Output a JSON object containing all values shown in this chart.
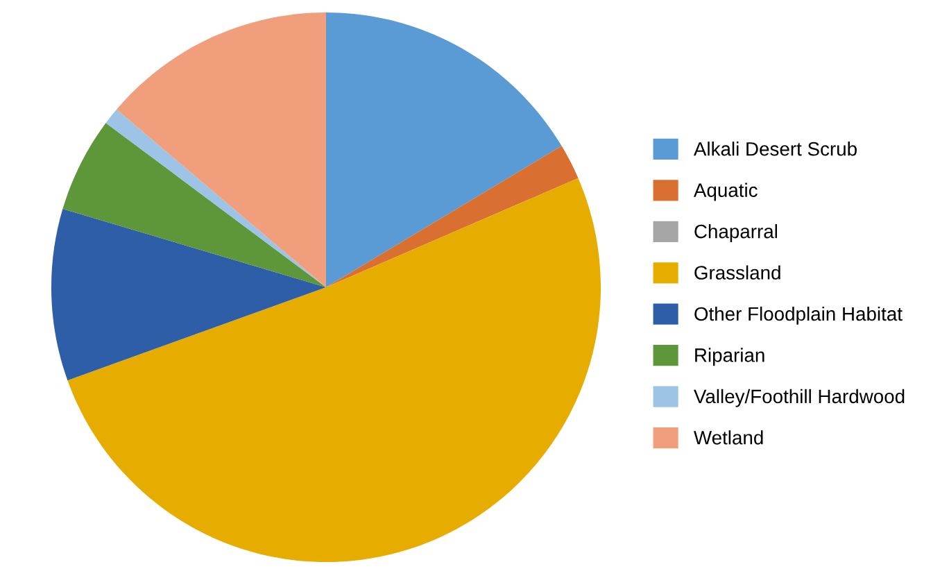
{
  "chart_data": {
    "type": "pie",
    "categories": [
      "Alkali Desert Scrub",
      "Aquatic",
      "Chaparral",
      "Grassland",
      "Other Floodplain Habitat",
      "Riparian",
      "Valley/Foothill Hardwood",
      "Wetland"
    ],
    "values": [
      16.4,
      2.1,
      0,
      51.0,
      10.1,
      5.6,
      1.0,
      13.8
    ],
    "colors": [
      "#5b9bd5",
      "#d97032",
      "#a5a5a5",
      "#e6ad00",
      "#2e5ea8",
      "#5e963a",
      "#9dc3e6",
      "#f19e7c"
    ],
    "legend": "right"
  }
}
